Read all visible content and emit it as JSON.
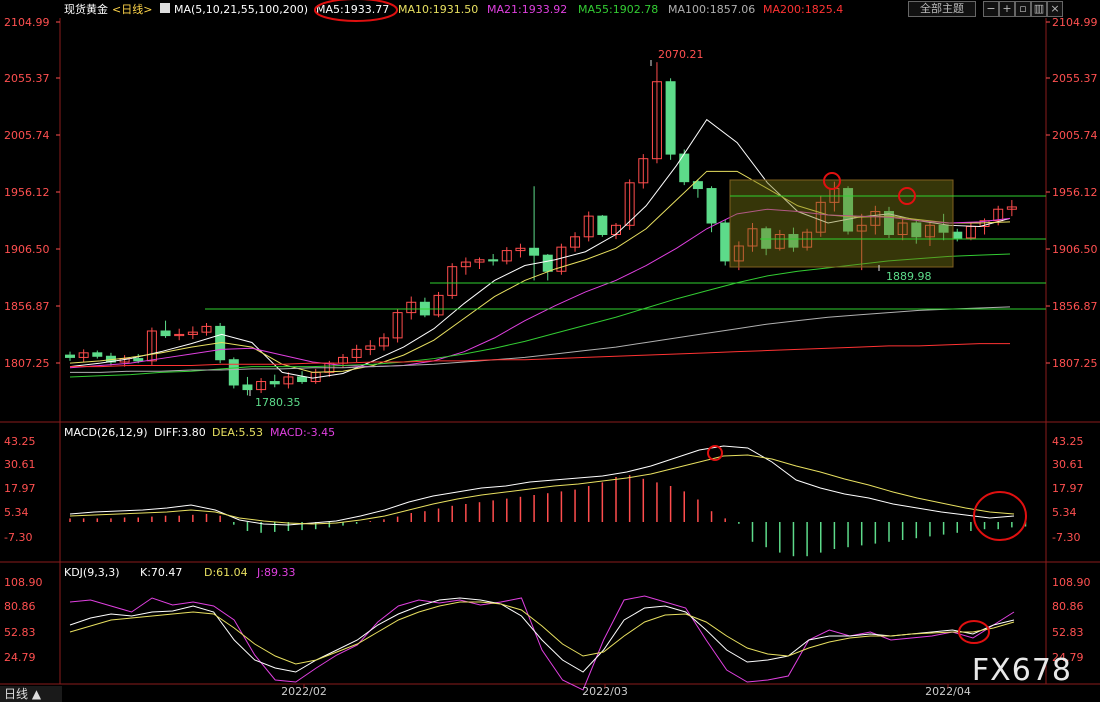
{
  "header": {
    "instrument": "现货黄金",
    "period": "<日线>",
    "ma_title": "MA(5,10,21,55,100,200)",
    "ma5": "MA5:1933.77",
    "ma10": "MA10:1931.50",
    "ma21": "MA21:1933.92",
    "ma55": "MA55:1902.78",
    "ma100": "MA100:1857.06",
    "ma200": "MA200:1825.4",
    "theme_button": "全部主题",
    "ctrl_icons": [
      "minus-icon",
      "plus-icon",
      "restore-icon",
      "layout-icon",
      "close-icon"
    ]
  },
  "colors": {
    "up": "#ff4d4d",
    "down": "#5ddb8a",
    "ma5": "#ffffff",
    "ma10": "#e8e060",
    "ma21": "#e040e0",
    "ma55": "#33cc33",
    "ma100": "#b0b0b0",
    "ma200": "#ff3333",
    "axis": "#ff5050",
    "grid_border": "#8a1c1c",
    "hline": "#30d030",
    "box": "rgba(120,120,20,0.45)"
  },
  "price_axis": {
    "ticks": [
      "2104.99",
      "2055.37",
      "2005.74",
      "1956.12",
      "1906.50",
      "1856.87",
      "1807.25"
    ]
  },
  "annotations": {
    "high": "2070.21",
    "low1": "1780.35",
    "low2": "1889.98"
  },
  "macd": {
    "title": "MACD(26,12,9)",
    "diff": "DIFF:3.80",
    "dea": "DEA:5.53",
    "macd": "MACD:-3.45",
    "ticks": [
      "43.25",
      "30.61",
      "17.97",
      "5.34",
      "-7.30"
    ]
  },
  "kdj": {
    "title": "KDJ(9,3,3)",
    "k": "K:70.47",
    "d": "D:61.04",
    "j": "J:89.33",
    "ticks": [
      "108.90",
      "80.86",
      "52.83",
      "24.79"
    ]
  },
  "x_labels": [
    "2022/02",
    "2022/03",
    "2022/04"
  ],
  "period_tab": "日线 ▲",
  "watermark": "FX678"
}
